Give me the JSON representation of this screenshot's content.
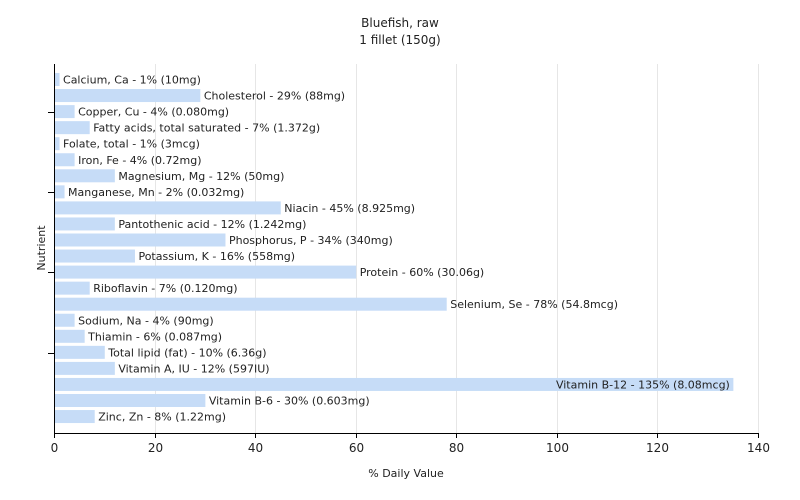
{
  "chart_data": {
    "type": "bar",
    "orientation": "horizontal",
    "title": "Bluefish, raw",
    "subtitle": "1 fillet (150g)",
    "xlabel": "% Daily Value",
    "ylabel": "Nutrient",
    "xlim": [
      0,
      140
    ],
    "xticks": [
      0,
      20,
      40,
      60,
      80,
      100,
      120,
      140
    ],
    "grid": true,
    "bar_color": "#c6dcf7",
    "categories": [
      "Calcium, Ca",
      "Cholesterol",
      "Copper, Cu",
      "Fatty acids, total saturated",
      "Folate, total",
      "Iron, Fe",
      "Magnesium, Mg",
      "Manganese, Mn",
      "Niacin",
      "Pantothenic acid",
      "Phosphorus, P",
      "Potassium, K",
      "Protein",
      "Riboflavin",
      "Selenium, Se",
      "Sodium, Na",
      "Thiamin",
      "Total lipid (fat)",
      "Vitamin A, IU",
      "Vitamin B-12",
      "Vitamin B-6",
      "Zinc, Zn"
    ],
    "values": [
      1,
      29,
      4,
      7,
      1,
      4,
      12,
      2,
      45,
      12,
      34,
      16,
      60,
      7,
      78,
      4,
      6,
      10,
      12,
      135,
      30,
      8
    ],
    "labels": [
      "Calcium, Ca - 1% (10mg)",
      "Cholesterol - 29% (88mg)",
      "Copper, Cu - 4% (0.080mg)",
      "Fatty acids, total saturated - 7% (1.372g)",
      "Folate, total - 1% (3mcg)",
      "Iron, Fe - 4% (0.72mg)",
      "Magnesium, Mg - 12% (50mg)",
      "Manganese, Mn - 2% (0.032mg)",
      "Niacin - 45% (8.925mg)",
      "Pantothenic acid - 12% (1.242mg)",
      "Phosphorus, P - 34% (340mg)",
      "Potassium, K - 16% (558mg)",
      "Protein - 60% (30.06g)",
      "Riboflavin - 7% (0.120mg)",
      "Selenium, Se - 78% (54.8mcg)",
      "Sodium, Na - 4% (90mg)",
      "Thiamin - 6% (0.087mg)",
      "Total lipid (fat) - 10% (6.36g)",
      "Vitamin A, IU - 12% (597IU)",
      "Vitamin B-12 - 135% (8.08mcg)",
      "Vitamin B-6 - 30% (0.603mg)",
      "Zinc, Zn - 8% (1.22mg)"
    ]
  }
}
